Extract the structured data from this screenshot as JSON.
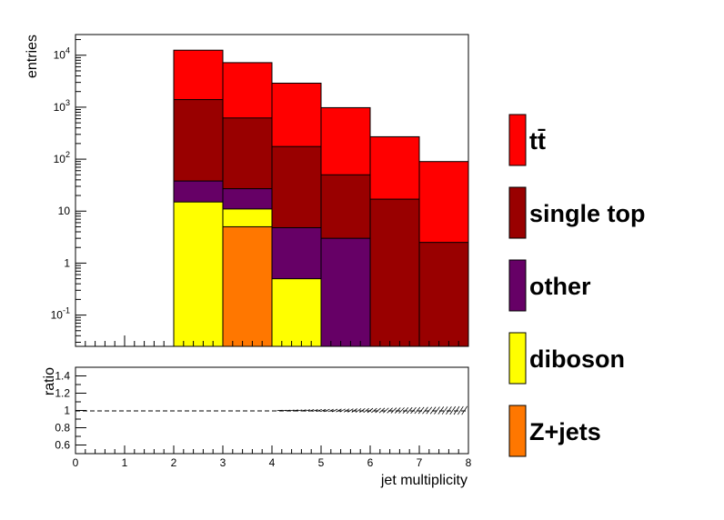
{
  "chart_data": [
    {
      "type": "bar",
      "stacked": true,
      "y_scale": "log",
      "ylabel": "entries",
      "xlim": [
        0,
        8
      ],
      "ylim": [
        0.025,
        25000
      ],
      "bin_edges": [
        0,
        1,
        2,
        3,
        4,
        5,
        6,
        7,
        8
      ],
      "y_ticks": [
        {
          "value": 0.1,
          "base": "10",
          "exp": "-1"
        },
        {
          "value": 1,
          "base": "1",
          "exp": ""
        },
        {
          "value": 10,
          "base": "10",
          "exp": ""
        },
        {
          "value": 100,
          "base": "10",
          "exp": "2"
        },
        {
          "value": 1000,
          "base": "10",
          "exp": "3"
        },
        {
          "value": 10000,
          "base": "10",
          "exp": "4"
        }
      ],
      "cumulative_stack": [
        {
          "name": "tt̄",
          "color": "#ff0000",
          "top": [
            0,
            0,
            12500,
            7200,
            2900,
            980,
            270,
            90
          ]
        },
        {
          "name": "single top",
          "color": "#990000",
          "top": [
            0,
            0,
            1400,
            620,
            175,
            50,
            17,
            2.5
          ]
        },
        {
          "name": "other",
          "color": "#660066",
          "top": [
            0,
            0,
            38,
            27,
            4.8,
            3.0,
            0,
            0
          ]
        },
        {
          "name": "diboson",
          "color": "#ffff00",
          "top": [
            0,
            0,
            15,
            11,
            0.5,
            0,
            0,
            0
          ]
        },
        {
          "name": "Z+jets",
          "color": "#ff7700",
          "top": [
            0,
            0,
            0,
            5,
            0,
            0,
            0,
            0
          ]
        }
      ]
    },
    {
      "type": "line",
      "ylabel": "ratio",
      "xlabel": "jet multiplicity",
      "xlim": [
        0,
        8
      ],
      "ylim": [
        0.5,
        1.5
      ],
      "x_ticks": [
        "0",
        "1",
        "2",
        "3",
        "4",
        "5",
        "6",
        "7",
        "8"
      ],
      "y_ticks": [
        "0.6",
        "0.8",
        "1",
        "1.2",
        "1.4"
      ],
      "reference_line": 1.0,
      "ratio_band": {
        "x_start": 4.0,
        "x_end": 8.0,
        "half_width_start": 0.0,
        "half_width_end": 0.05
      }
    }
  ],
  "legend": [
    {
      "label": "tt̄",
      "color": "#ff0000"
    },
    {
      "label": "single top",
      "color": "#990000"
    },
    {
      "label": "other",
      "color": "#660066"
    },
    {
      "label": "diboson",
      "color": "#ffff00"
    },
    {
      "label": "Z+jets",
      "color": "#ff7700"
    }
  ]
}
